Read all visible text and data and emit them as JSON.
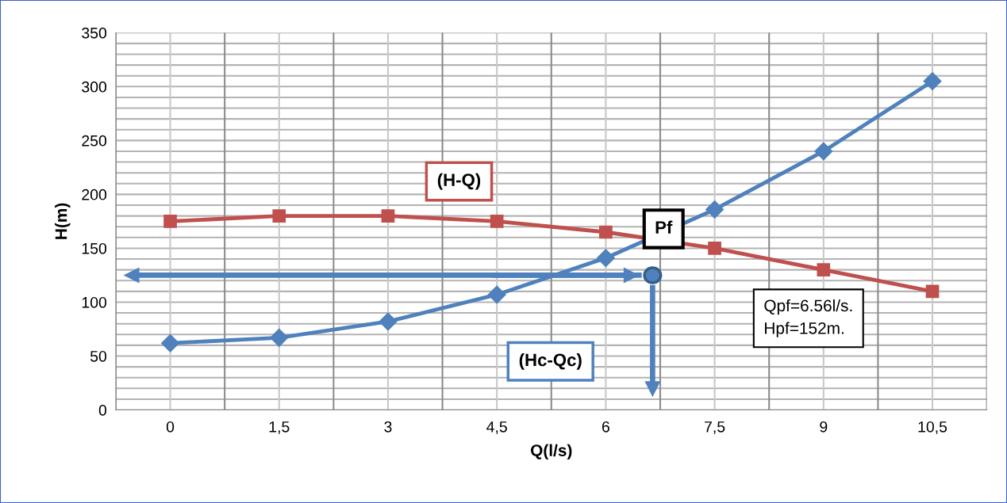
{
  "chart_data": {
    "type": "line",
    "xlabel": "Q(l/s)",
    "ylabel": "H(m)",
    "categories": [
      "0",
      "1,5",
      "3",
      "4,5",
      "6",
      "7,5",
      "9",
      "10,5"
    ],
    "series": [
      {
        "color": "#4f81bd",
        "marker": "diamond",
        "values": [
          62,
          67,
          82,
          107,
          141,
          186,
          240,
          305
        ]
      },
      {
        "color": "#c0504d",
        "marker": "square",
        "values": [
          175,
          180,
          180,
          175,
          165,
          150,
          130,
          110
        ]
      }
    ],
    "ylim": [
      0,
      350
    ],
    "yticks": [
      0,
      50,
      100,
      150,
      200,
      250,
      300,
      350
    ],
    "grid": true,
    "line_style": "solid",
    "annotations": [
      "(H-Q)",
      "(Hc-Qc)",
      "Pf",
      "Qpf=6.56l/s.\nHpf=152m."
    ]
  }
}
